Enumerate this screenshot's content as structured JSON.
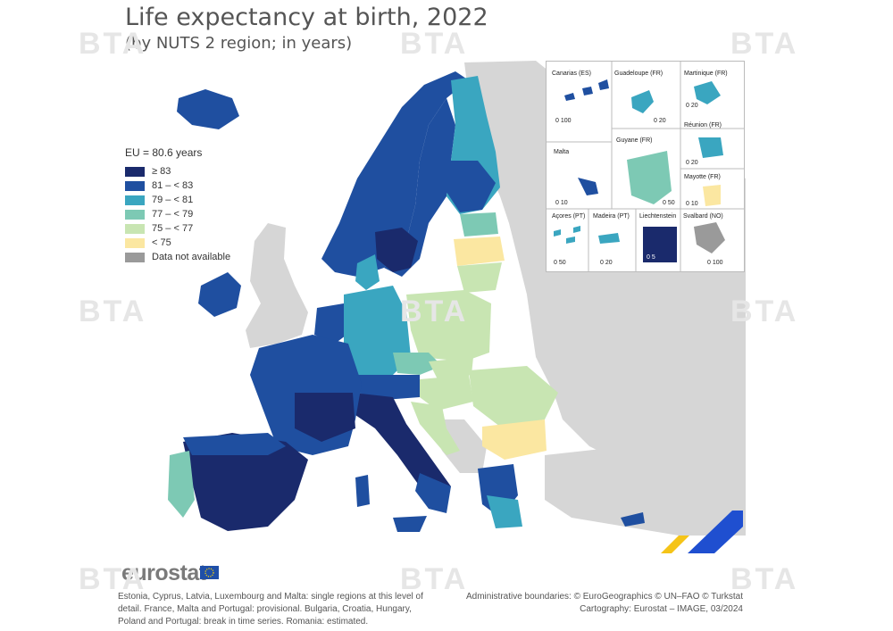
{
  "title": "Life expectancy at birth, 2022",
  "subtitle": "(by NUTS 2 region; in years)",
  "legend": {
    "eu_label": "EU = 80.6 years",
    "items": [
      {
        "label": "≥ 83",
        "color": "#1a2a6c"
      },
      {
        "label": "81 – < 83",
        "color": "#1f4fa0"
      },
      {
        "label": "79 – < 81",
        "color": "#3aa6c0"
      },
      {
        "label": "77 – < 79",
        "color": "#7dc9b4"
      },
      {
        "label": "75 – < 77",
        "color": "#c8e5b2"
      },
      {
        "label": "< 75",
        "color": "#fbe7a1"
      },
      {
        "label": "Data not available",
        "color": "#9a9a9a"
      }
    ]
  },
  "insets": {
    "canarias": {
      "name": "Canarias (ES)",
      "scale": "0   100"
    },
    "guadeloupe": {
      "name": "Guadeloupe (FR)",
      "scale": "0   20"
    },
    "martinique": {
      "name": "Martinique (FR)",
      "scale": "0   20"
    },
    "guyane": {
      "name": "Guyane (FR)",
      "scale": "0   50"
    },
    "reunion": {
      "name": "Réunion (FR)",
      "scale": "0   20"
    },
    "malta": {
      "name": "Malta",
      "scale": "0   10"
    },
    "mayotte": {
      "name": "Mayotte (FR)",
      "scale": "0   10"
    },
    "acores": {
      "name": "Açores (PT)",
      "scale": "0   50"
    },
    "madeira": {
      "name": "Madeira (PT)",
      "scale": "0   20"
    },
    "liechtenstein": {
      "name": "Liechtenstein",
      "scale": "0   5"
    },
    "svalbard": {
      "name": "Svalbard (NO)",
      "scale": "0   100"
    }
  },
  "logo": "eurostat",
  "footer": {
    "note": "Estonia, Cyprus, Latvia, Luxembourg and Malta: single regions at this level of detail. France, Malta and Portugal: provisional. Bulgaria, Croatia, Hungary, Poland and Portugal: break in time series. Romania: estimated.",
    "boundaries": "Administrative boundaries: © EuroGeographics © UN–FAO © Turkstat",
    "cartography": "Cartography: Eurostat – IMAGE, 03/2024"
  },
  "watermark": "BTA",
  "colors": {
    "bg_land": "#d6d6d6",
    "sea": "#ffffff",
    "c83": "#1a2a6c",
    "c81": "#1f4fa0",
    "c79": "#3aa6c0",
    "c77": "#7dc9b4",
    "c75": "#c8e5b2",
    "clow": "#fbe7a1"
  }
}
